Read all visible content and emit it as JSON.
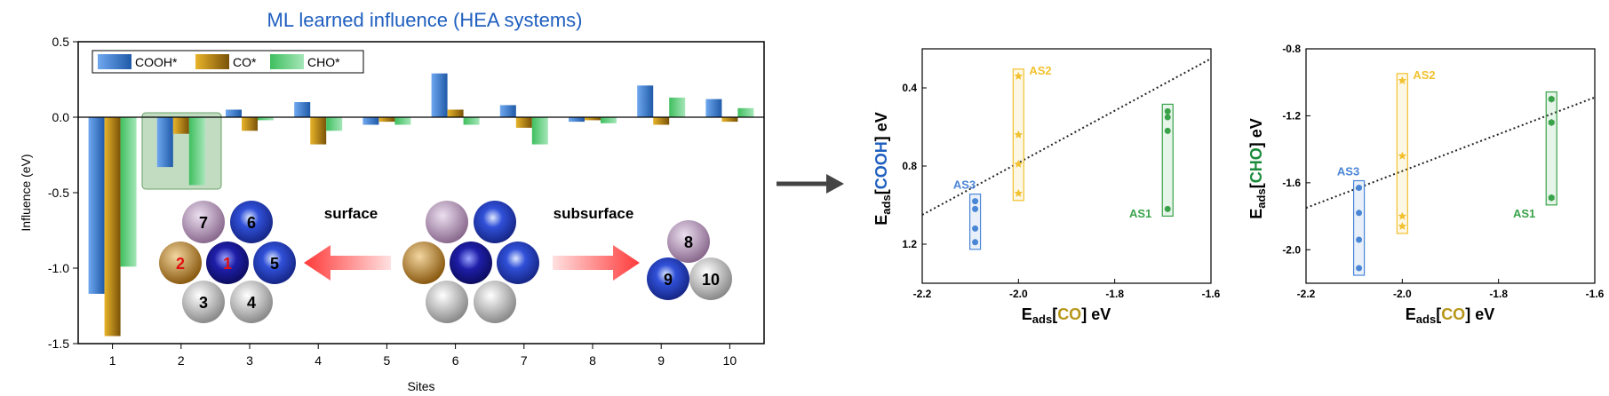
{
  "left_chart": {
    "title": "ML learned influence (HEA systems)",
    "colors": {
      "title": "#1f5fbf"
    },
    "chart_data": {
      "type": "bar",
      "title": "ML learned influence (HEA systems)",
      "xlabel": "Sites",
      "ylabel": "Influence (eV)",
      "categories": [
        "1",
        "2",
        "3",
        "4",
        "5",
        "6",
        "7",
        "8",
        "9",
        "10"
      ],
      "ylim": [
        -1.5,
        0.5
      ],
      "yticks": [
        "0.5",
        "0.0",
        "-0.5",
        "-1.0",
        "-1.5"
      ],
      "ytick_values": [
        0.5,
        0.0,
        -0.5,
        -1.0,
        -1.5
      ],
      "legend_position": "top-left",
      "series": [
        {
          "name": "COOH*",
          "color": "#3b78c9",
          "values": [
            -1.17,
            -0.33,
            0.05,
            0.1,
            -0.05,
            0.29,
            0.08,
            -0.03,
            0.21,
            0.12
          ]
        },
        {
          "name": "CO*",
          "color": "#c8961a",
          "values": [
            -1.45,
            -0.11,
            -0.09,
            -0.18,
            -0.03,
            0.05,
            -0.07,
            -0.02,
            -0.05,
            -0.03
          ]
        },
        {
          "name": "CHO*",
          "color": "#4fbf6f",
          "values": [
            -0.99,
            -0.45,
            -0.02,
            -0.09,
            -0.05,
            -0.05,
            -0.18,
            -0.04,
            0.13,
            0.06
          ]
        }
      ]
    },
    "inset": {
      "surface_label": "surface",
      "subsurface_label": "subsurface",
      "surface_atoms": [
        "7",
        "6",
        "2",
        "1",
        "5",
        "3",
        "4"
      ],
      "subsurface_atoms": [
        "8",
        "9",
        "10"
      ]
    }
  },
  "mid_chart": {
    "chart_data": {
      "type": "scatter",
      "xlabel": "Eads [CO] eV",
      "ylabel": "Eads [COOH] eV",
      "xlim": [
        -2.2,
        -1.6
      ],
      "ylim": [
        0.2,
        1.4
      ],
      "y_inverted": true,
      "xticks": [
        "-2.2",
        "-2.0",
        "-1.8",
        "-1.6"
      ],
      "xtick_values": [
        -2.2,
        -2.0,
        -1.8,
        -1.6
      ],
      "yticks": [
        "0.4",
        "0.8",
        "1.2"
      ],
      "ytick_values": [
        0.4,
        0.8,
        1.2
      ],
      "series": [
        {
          "name": "AS3",
          "color": "#4a86d6",
          "marker": "circle",
          "x": [
            -2.09,
            -2.09,
            -2.09,
            -2.09
          ],
          "y": [
            0.98,
            1.02,
            1.12,
            1.19
          ]
        },
        {
          "name": "AS2",
          "color": "#f2c12e",
          "marker": "star",
          "x": [
            -2.0,
            -2.0,
            -2.0,
            -2.0
          ],
          "y": [
            0.34,
            0.64,
            0.79,
            0.94
          ]
        },
        {
          "name": "AS1",
          "color": "#3aa34a",
          "marker": "circle",
          "x": [
            -1.69,
            -1.69,
            -1.69,
            -1.69
          ],
          "y": [
            0.52,
            0.55,
            0.62,
            1.02
          ]
        }
      ],
      "fit_line": {
        "x": [
          -2.2,
          -1.6
        ],
        "y": [
          1.05,
          0.25
        ]
      }
    }
  },
  "right_chart": {
    "chart_data": {
      "type": "scatter",
      "xlabel": "Eads [CO] eV",
      "ylabel": "Eads [CHO] eV",
      "xlim": [
        -2.2,
        -1.6
      ],
      "ylim": [
        -0.8,
        -2.2
      ],
      "xticks": [
        "-2.2",
        "-2.0",
        "-1.8",
        "-1.6"
      ],
      "xtick_values": [
        -2.2,
        -2.0,
        -1.8,
        -1.6
      ],
      "yticks": [
        "-0.8",
        "-1.2",
        "-1.6",
        "-2.0"
      ],
      "ytick_values": [
        -0.8,
        -1.2,
        -1.6,
        -2.0
      ],
      "series": [
        {
          "name": "AS3",
          "color": "#4a86d6",
          "marker": "circle",
          "x": [
            -2.09,
            -2.09,
            -2.09,
            -2.09
          ],
          "y": [
            -1.63,
            -1.78,
            -1.94,
            -2.11
          ]
        },
        {
          "name": "AS2",
          "color": "#f2c12e",
          "marker": "star",
          "x": [
            -2.0,
            -2.0,
            -2.0,
            -2.0
          ],
          "y": [
            -0.99,
            -1.44,
            -1.8,
            -1.86
          ]
        },
        {
          "name": "AS1",
          "color": "#3aa34a",
          "marker": "hexagon",
          "x": [
            -1.69,
            -1.69,
            -1.69
          ],
          "y": [
            -1.1,
            -1.24,
            -1.69
          ]
        }
      ],
      "fit_line": {
        "x": [
          -2.2,
          -1.6
        ],
        "y": [
          -1.75,
          -1.09
        ]
      }
    }
  },
  "axis_label_parts": {
    "eads_main": "E",
    "eads_sub": "ads",
    "ev": " eV",
    "lbr": "[",
    "rbr": "]",
    "co": "CO",
    "cooh": "COOH",
    "cho": "CHO",
    "colors": {
      "co": "#b8961a",
      "cooh": "#1f5fbf",
      "cho": "#1a8a3a"
    }
  }
}
